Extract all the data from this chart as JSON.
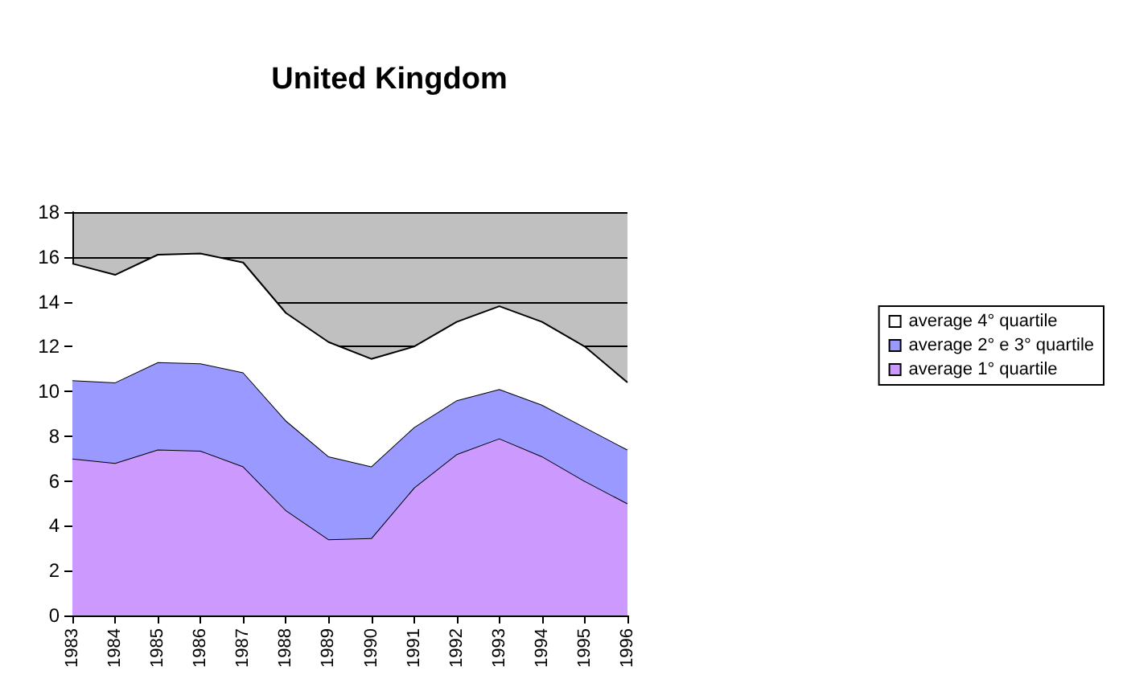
{
  "chart_data": {
    "type": "area",
    "title": "United Kingdom",
    "stacked": true,
    "categories": [
      "1983",
      "1984",
      "1985",
      "1986",
      "1987",
      "1988",
      "1989",
      "1990",
      "1991",
      "1992",
      "1993",
      "1994",
      "1995",
      "1996"
    ],
    "series": [
      {
        "name": "average 1° quartile",
        "color": "#cc99ff",
        "values": [
          7.0,
          6.8,
          7.4,
          7.35,
          6.65,
          4.7,
          3.4,
          3.45,
          5.7,
          7.2,
          7.9,
          7.1,
          6.0,
          5.0
        ]
      },
      {
        "name": "average 2° e 3° quartile",
        "color": "#9999ff",
        "values": [
          3.5,
          3.6,
          3.9,
          3.9,
          4.2,
          4.0,
          3.7,
          3.2,
          2.7,
          2.4,
          2.2,
          2.3,
          2.4,
          2.4
        ]
      },
      {
        "name": "average 4° quartile",
        "color": "#ffffff",
        "values": [
          5.2,
          4.8,
          4.8,
          4.9,
          4.9,
          4.8,
          5.1,
          4.8,
          3.6,
          3.5,
          3.7,
          3.7,
          3.6,
          3.0
        ]
      }
    ],
    "ylim": [
      0,
      18
    ],
    "yticks": [
      0,
      2,
      4,
      6,
      8,
      10,
      12,
      14,
      16,
      18
    ],
    "grid": "y",
    "legend": "right",
    "marker": "none",
    "line_style": "solid"
  }
}
